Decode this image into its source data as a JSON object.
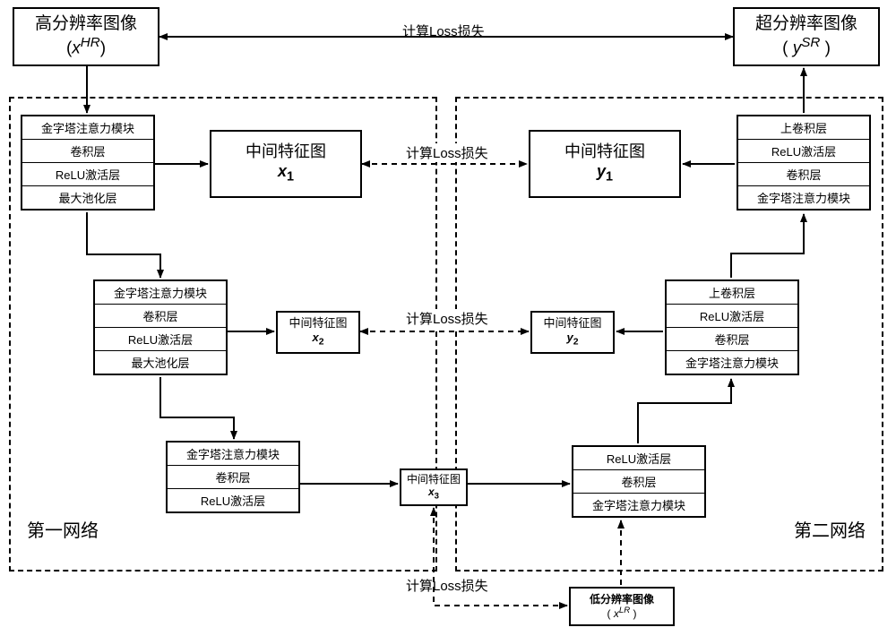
{
  "title_top_left": {
    "l1": "高分辨率图像",
    "l2_pre": "(",
    "var": "x",
    "sup": "HR",
    "l2_post": ")"
  },
  "title_top_right": {
    "l1": "超分辨率图像",
    "l2_pre": "( ",
    "var": "y",
    "sup": "SR",
    "l2_post": " )"
  },
  "top_arrow_label": "计算Loss损失",
  "region_left_label": "第一网络",
  "region_right_label": "第二网络",
  "stack_L1": [
    "金字塔注意力模块",
    "卷积层",
    "ReLU激活层",
    "最大池化层"
  ],
  "stack_L2": [
    "金字塔注意力模块",
    "卷积层",
    "ReLU激活层",
    "最大池化层"
  ],
  "stack_L3": [
    "金字塔注意力模块",
    "卷积层",
    "ReLU激活层"
  ],
  "stack_R1": [
    "上卷积层",
    "ReLU激活层",
    "卷积层",
    "金字塔注意力模块"
  ],
  "stack_R2": [
    "上卷积层",
    "ReLU激活层",
    "卷积层",
    "金字塔注意力模块"
  ],
  "stack_R3": [
    "ReLU激活层",
    "卷积层",
    "金字塔注意力模块"
  ],
  "mid_x1": {
    "l1": "中间特征图",
    "var": "x",
    "sub": "1"
  },
  "mid_x2": {
    "l1": "中间特征图",
    "var": "x",
    "sub": "2"
  },
  "mid_x3": {
    "l1": "中间特征图",
    "var": "x",
    "sub": "3"
  },
  "mid_y1": {
    "l1": "中间特征图",
    "var": "y",
    "sub": "1"
  },
  "mid_y2": {
    "l1": "中间特征图",
    "var": "y",
    "sub": "2"
  },
  "loss_label_1": "计算Loss损失",
  "loss_label_2": "计算Loss损失",
  "loss_label_3": "计算Loss损失",
  "lr_box": {
    "l1": "低分辨率图像",
    "l2_pre": "( ",
    "var": "x",
    "sup": "LR",
    "l2_post": " )"
  },
  "style": {
    "bg": "#ffffff",
    "line_color": "#000000",
    "line_width": 2,
    "dash": "6,5",
    "font_size_box": 15,
    "font_size_small": 13,
    "font_size_region": 20
  }
}
